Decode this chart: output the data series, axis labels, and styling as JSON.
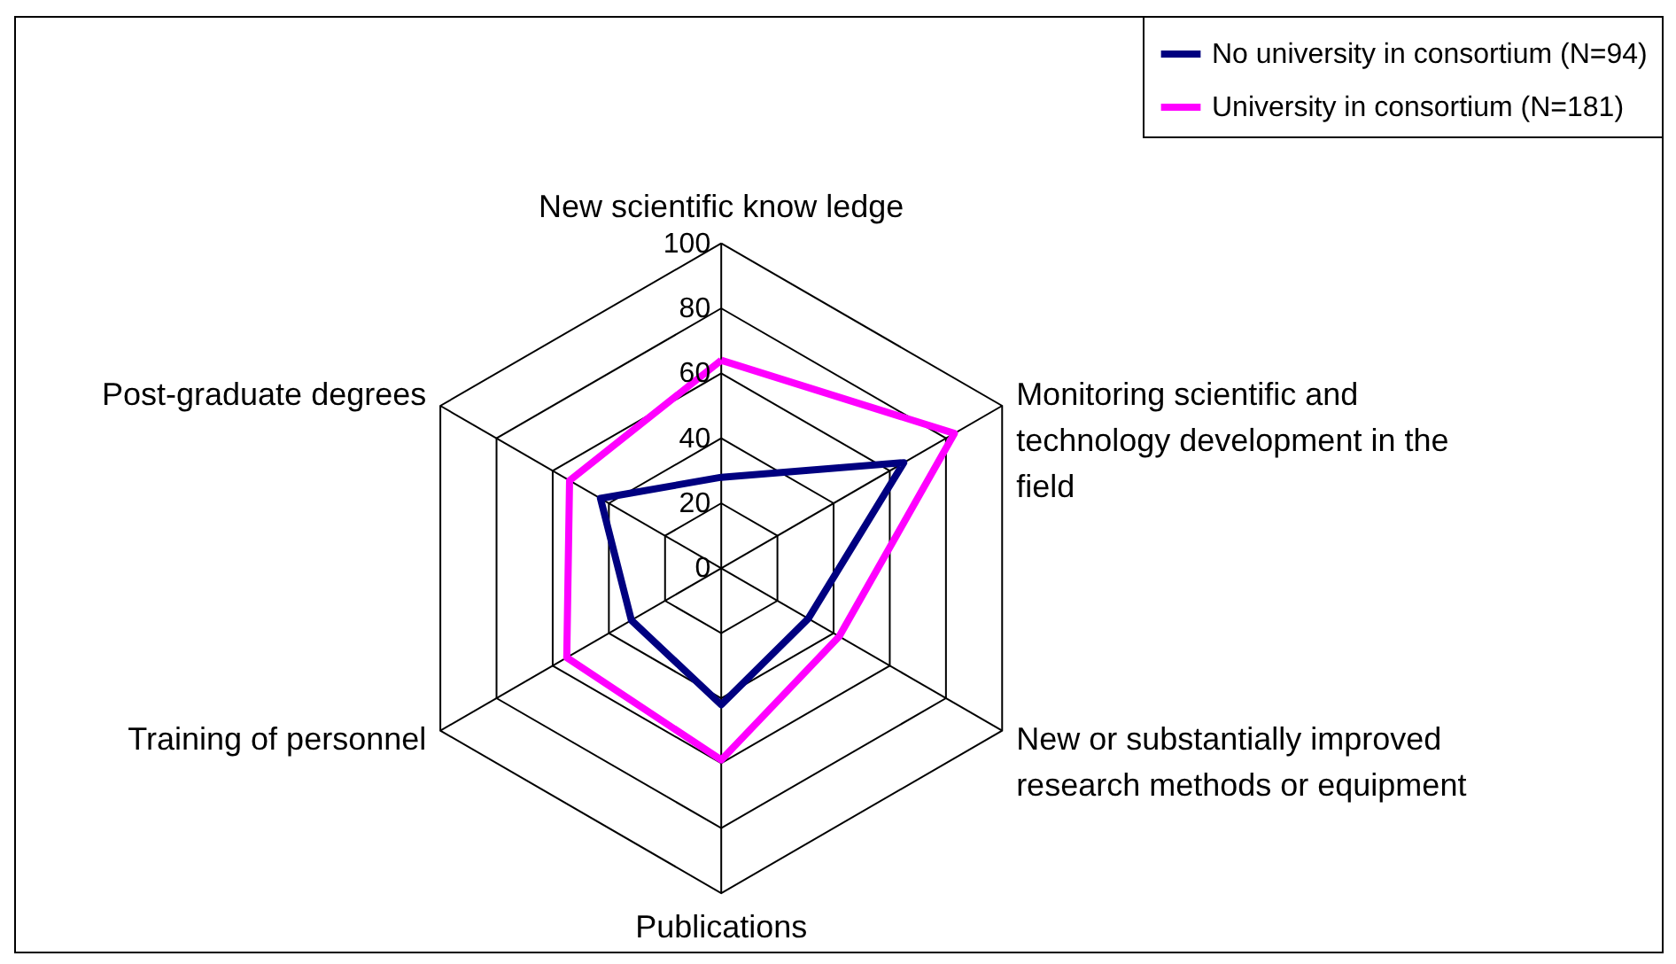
{
  "chart_data": {
    "type": "radar",
    "categories": [
      "New scientific know ledge",
      "Monitoring scientific and technology development in the field",
      "New or substantially improved research methods or equipment",
      "Publications",
      "Training of personnel",
      "Post-graduate degrees"
    ],
    "series": [
      {
        "name": "No university in consortium (N=94)",
        "color": "#000080",
        "values": [
          28,
          65,
          31,
          42,
          32,
          43
        ]
      },
      {
        "name": "University in consortium (N=181)",
        "color": "#ff00ff",
        "values": [
          64,
          83,
          42,
          59,
          55,
          54
        ]
      }
    ],
    "ylim": [
      0,
      100
    ],
    "yticks": [
      0,
      20,
      40,
      60,
      80,
      100
    ],
    "legend": "top right",
    "grid": true
  }
}
